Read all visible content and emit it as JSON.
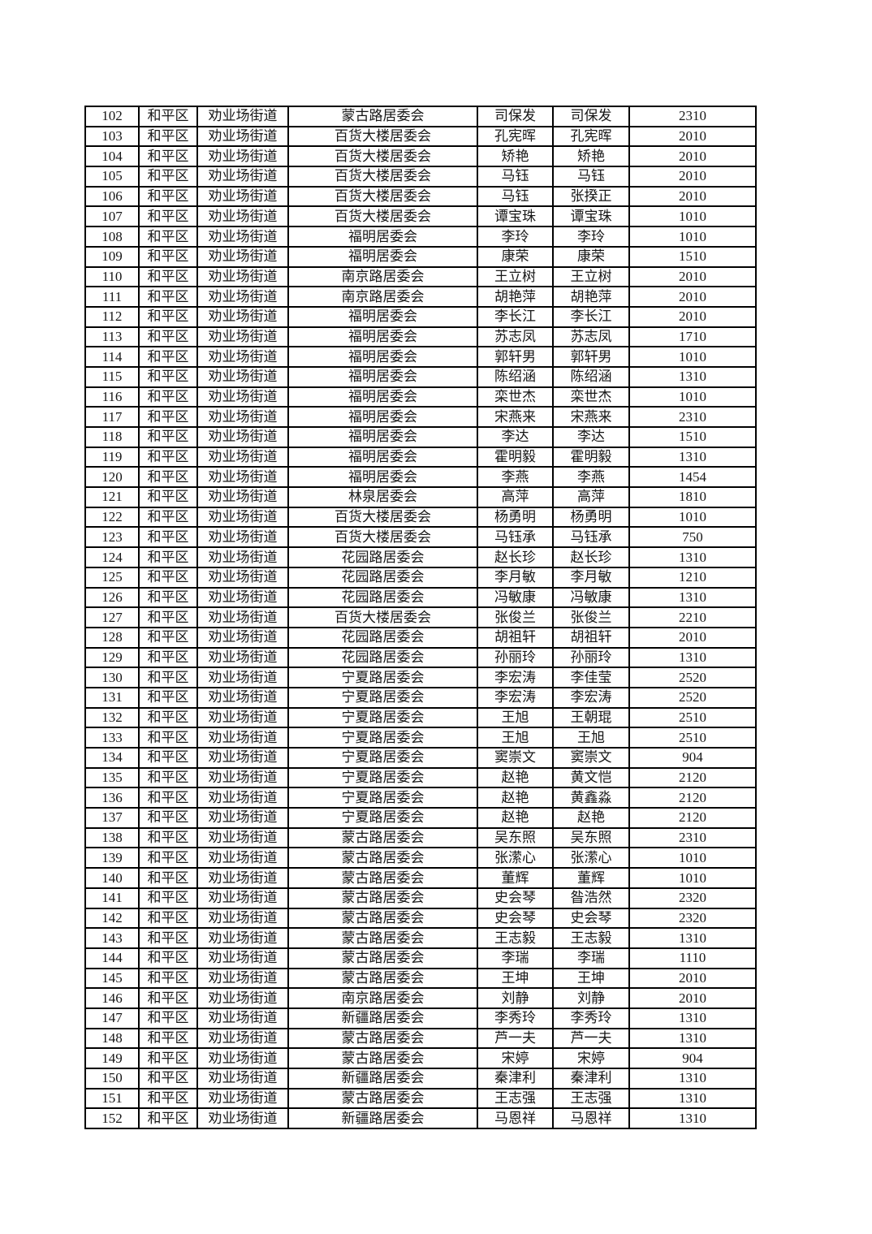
{
  "page": {
    "background_color": "#ffffff",
    "text_color": "#161616",
    "border_color": "#000000"
  },
  "table": {
    "rows": [
      [
        "102",
        "和平区",
        "劝业场街道",
        "蒙古路居委会",
        "司保发",
        "司保发",
        "2310"
      ],
      [
        "103",
        "和平区",
        "劝业场街道",
        "百货大楼居委会",
        "孔宪晖",
        "孔宪晖",
        "2010"
      ],
      [
        "104",
        "和平区",
        "劝业场街道",
        "百货大楼居委会",
        "矫艳",
        "矫艳",
        "2010"
      ],
      [
        "105",
        "和平区",
        "劝业场街道",
        "百货大楼居委会",
        "马钰",
        "马钰",
        "2010"
      ],
      [
        "106",
        "和平区",
        "劝业场街道",
        "百货大楼居委会",
        "马钰",
        "张揆正",
        "2010"
      ],
      [
        "107",
        "和平区",
        "劝业场街道",
        "百货大楼居委会",
        "谭宝珠",
        "谭宝珠",
        "1010"
      ],
      [
        "108",
        "和平区",
        "劝业场街道",
        "福明居委会",
        "李玲",
        "李玲",
        "1010"
      ],
      [
        "109",
        "和平区",
        "劝业场街道",
        "福明居委会",
        "康荣",
        "康荣",
        "1510"
      ],
      [
        "110",
        "和平区",
        "劝业场街道",
        "南京路居委会",
        "王立树",
        "王立树",
        "2010"
      ],
      [
        "111",
        "和平区",
        "劝业场街道",
        "南京路居委会",
        "胡艳萍",
        "胡艳萍",
        "2010"
      ],
      [
        "112",
        "和平区",
        "劝业场街道",
        "福明居委会",
        "李长江",
        "李长江",
        "2010"
      ],
      [
        "113",
        "和平区",
        "劝业场街道",
        "福明居委会",
        "苏志凤",
        "苏志凤",
        "1710"
      ],
      [
        "114",
        "和平区",
        "劝业场街道",
        "福明居委会",
        "郭轩男",
        "郭轩男",
        "1010"
      ],
      [
        "115",
        "和平区",
        "劝业场街道",
        "福明居委会",
        "陈绍涵",
        "陈绍涵",
        "1310"
      ],
      [
        "116",
        "和平区",
        "劝业场街道",
        "福明居委会",
        "栾世杰",
        "栾世杰",
        "1010"
      ],
      [
        "117",
        "和平区",
        "劝业场街道",
        "福明居委会",
        "宋燕来",
        "宋燕来",
        "2310"
      ],
      [
        "118",
        "和平区",
        "劝业场街道",
        "福明居委会",
        "李达",
        "李达",
        "1510"
      ],
      [
        "119",
        "和平区",
        "劝业场街道",
        "福明居委会",
        "霍明毅",
        "霍明毅",
        "1310"
      ],
      [
        "120",
        "和平区",
        "劝业场街道",
        "福明居委会",
        "李燕",
        "李燕",
        "1454"
      ],
      [
        "121",
        "和平区",
        "劝业场街道",
        "林泉居委会",
        "高萍",
        "高萍",
        "1810"
      ],
      [
        "122",
        "和平区",
        "劝业场街道",
        "百货大楼居委会",
        "杨勇明",
        "杨勇明",
        "1010"
      ],
      [
        "123",
        "和平区",
        "劝业场街道",
        "百货大楼居委会",
        "马钰承",
        "马钰承",
        "750"
      ],
      [
        "124",
        "和平区",
        "劝业场街道",
        "花园路居委会",
        "赵长珍",
        "赵长珍",
        "1310"
      ],
      [
        "125",
        "和平区",
        "劝业场街道",
        "花园路居委会",
        "李月敏",
        "李月敏",
        "1210"
      ],
      [
        "126",
        "和平区",
        "劝业场街道",
        "花园路居委会",
        "冯敏康",
        "冯敏康",
        "1310"
      ],
      [
        "127",
        "和平区",
        "劝业场街道",
        "百货大楼居委会",
        "张俊兰",
        "张俊兰",
        "2210"
      ],
      [
        "128",
        "和平区",
        "劝业场街道",
        "花园路居委会",
        "胡祖轩",
        "胡祖轩",
        "2010"
      ],
      [
        "129",
        "和平区",
        "劝业场街道",
        "花园路居委会",
        "孙丽玲",
        "孙丽玲",
        "1310"
      ],
      [
        "130",
        "和平区",
        "劝业场街道",
        "宁夏路居委会",
        "李宏涛",
        "李佳莹",
        "2520"
      ],
      [
        "131",
        "和平区",
        "劝业场街道",
        "宁夏路居委会",
        "李宏涛",
        "李宏涛",
        "2520"
      ],
      [
        "132",
        "和平区",
        "劝业场街道",
        "宁夏路居委会",
        "王旭",
        "王朝琨",
        "2510"
      ],
      [
        "133",
        "和平区",
        "劝业场街道",
        "宁夏路居委会",
        "王旭",
        "王旭",
        "2510"
      ],
      [
        "134",
        "和平区",
        "劝业场街道",
        "宁夏路居委会",
        "窦崇文",
        "窦崇文",
        "904"
      ],
      [
        "135",
        "和平区",
        "劝业场街道",
        "宁夏路居委会",
        "赵艳",
        "黄文恺",
        "2120"
      ],
      [
        "136",
        "和平区",
        "劝业场街道",
        "宁夏路居委会",
        "赵艳",
        "黄鑫淼",
        "2120"
      ],
      [
        "137",
        "和平区",
        "劝业场街道",
        "宁夏路居委会",
        "赵艳",
        "赵艳",
        "2120"
      ],
      [
        "138",
        "和平区",
        "劝业场街道",
        "蒙古路居委会",
        "吴东照",
        "吴东照",
        "2310"
      ],
      [
        "139",
        "和平区",
        "劝业场街道",
        "蒙古路居委会",
        "张潆心",
        "张潆心",
        "1010"
      ],
      [
        "140",
        "和平区",
        "劝业场街道",
        "蒙古路居委会",
        "董辉",
        "董辉",
        "1010"
      ],
      [
        "141",
        "和平区",
        "劝业场街道",
        "蒙古路居委会",
        "史会琴",
        "昝浩然",
        "2320"
      ],
      [
        "142",
        "和平区",
        "劝业场街道",
        "蒙古路居委会",
        "史会琴",
        "史会琴",
        "2320"
      ],
      [
        "143",
        "和平区",
        "劝业场街道",
        "蒙古路居委会",
        "王志毅",
        "王志毅",
        "1310"
      ],
      [
        "144",
        "和平区",
        "劝业场街道",
        "蒙古路居委会",
        "李瑞",
        "李瑞",
        "1110"
      ],
      [
        "145",
        "和平区",
        "劝业场街道",
        "蒙古路居委会",
        "王坤",
        "王坤",
        "2010"
      ],
      [
        "146",
        "和平区",
        "劝业场街道",
        "南京路居委会",
        "刘静",
        "刘静",
        "2010"
      ],
      [
        "147",
        "和平区",
        "劝业场街道",
        "新疆路居委会",
        "李秀玲",
        "李秀玲",
        "1310"
      ],
      [
        "148",
        "和平区",
        "劝业场街道",
        "蒙古路居委会",
        "芦一夫",
        "芦一夫",
        "1310"
      ],
      [
        "149",
        "和平区",
        "劝业场街道",
        "蒙古路居委会",
        "宋婷",
        "宋婷",
        "904"
      ],
      [
        "150",
        "和平区",
        "劝业场街道",
        "新疆路居委会",
        "秦津利",
        "秦津利",
        "1310"
      ],
      [
        "151",
        "和平区",
        "劝业场街道",
        "蒙古路居委会",
        "王志强",
        "王志强",
        "1310"
      ],
      [
        "152",
        "和平区",
        "劝业场街道",
        "新疆路居委会",
        "马恩祥",
        "马恩祥",
        "1310"
      ]
    ]
  }
}
